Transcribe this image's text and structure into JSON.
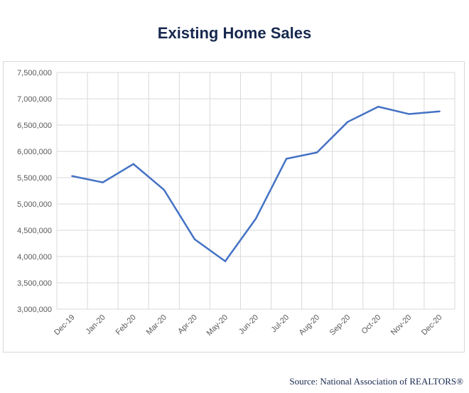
{
  "title": "Existing Home Sales",
  "source": "Source: National Association of REALTORS®",
  "colors": {
    "line": "#4472c4",
    "title": "#17284f",
    "grid": "#d9d9d9",
    "tick": "#595959"
  },
  "chart_data": {
    "type": "line",
    "title": "Existing Home Sales",
    "xlabel": "",
    "ylabel": "",
    "categories": [
      "Dec-19",
      "Jan-20",
      "Feb-20",
      "Mar-20",
      "Apr-20",
      "May-20",
      "Jun-20",
      "Jul-20",
      "Aug-20",
      "Sep-20",
      "Oct-20",
      "Nov-20",
      "Dec-20"
    ],
    "series": [
      {
        "values": [
          5530000,
          5410000,
          5760000,
          5270000,
          4330000,
          3910000,
          4720000,
          5860000,
          5980000,
          6560000,
          6850000,
          6710000,
          6760000
        ]
      }
    ],
    "ylim": [
      3000000,
      7500000
    ],
    "yticks": [
      3000000,
      3500000,
      4000000,
      4500000,
      5000000,
      5500000,
      6000000,
      6500000,
      7000000,
      7500000
    ],
    "ytick_labels": [
      "3,000,000",
      "3,500,000",
      "4,000,000",
      "4,500,000",
      "5,000,000",
      "5,500,000",
      "6,000,000",
      "6,500,000",
      "7,000,000",
      "7,500,000"
    ],
    "grid": true,
    "legend": "none"
  }
}
